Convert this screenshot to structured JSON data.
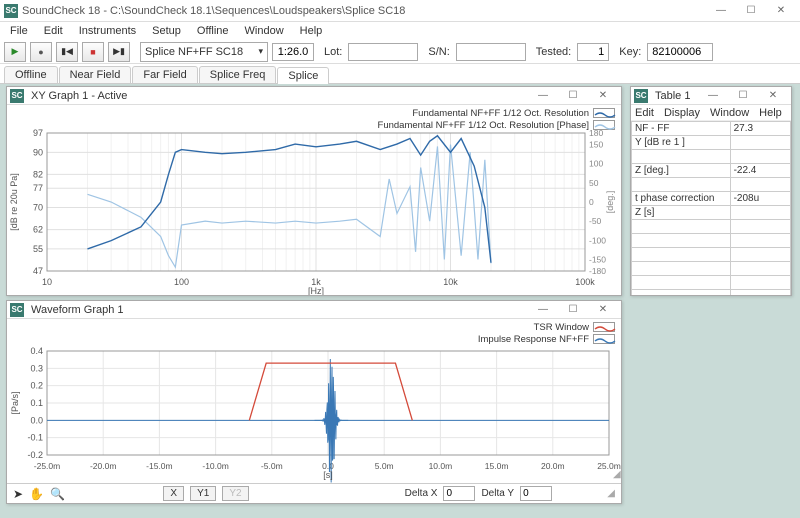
{
  "app": {
    "icon_text": "SC",
    "title": "SoundCheck 18  - C:\\SoundCheck 18.1\\Sequences\\Loudspeakers\\Splice SC18",
    "accent": "#3a7a6f"
  },
  "menu": [
    "File",
    "Edit",
    "Instruments",
    "Setup",
    "Offline",
    "Window",
    "Help"
  ],
  "toolbar": {
    "sequence": "Splice NF+FF SC18",
    "time": "1:26.0",
    "lot_label": "Lot:",
    "lot_value": "",
    "sn_label": "S/N:",
    "sn_value": "",
    "tested_label": "Tested:",
    "tested_value": "1",
    "key_label": "Key:",
    "key_value": "82100006"
  },
  "tabs": [
    "Offline",
    "Near Field",
    "Far Field",
    "Splice Freq",
    "Splice"
  ],
  "active_tab": 4,
  "xy_graph": {
    "title": "XY Graph 1 - Active",
    "legend": [
      {
        "label": "Fundamental NF+FF 1/12 Oct. Resolution",
        "color": "#2f6aa8",
        "style": "solid"
      },
      {
        "label": "Fundamental NF+FF 1/12 Oct. Resolution [Phase]",
        "color": "#9fc4e4",
        "style": "solid"
      }
    ],
    "x_label": "[Hz]",
    "y_left_label": "[dB re 20u Pa]",
    "y_right_label": "[deg.]",
    "x_log": true,
    "xlim": [
      10,
      100000
    ],
    "x_ticks": [
      10,
      100,
      1000,
      10000,
      100000
    ],
    "x_tick_labels": [
      "10",
      "100",
      "1k",
      "10k",
      "100k"
    ],
    "y_left": [
      47,
      97
    ],
    "y_left_ticks": [
      47,
      55,
      62,
      70,
      77,
      82,
      90,
      97
    ],
    "y_right": [
      -180,
      180
    ],
    "y_right_ticks": [
      -180,
      -150,
      -100,
      -50,
      0,
      50,
      100,
      150,
      180
    ],
    "grid_color": "#e0e0e0",
    "bg": "#ffffff",
    "mag": {
      "color": "#2f6aa8",
      "width": 1.4,
      "pts": [
        [
          20,
          55
        ],
        [
          30,
          58
        ],
        [
          50,
          63
        ],
        [
          70,
          72
        ],
        [
          80,
          82
        ],
        [
          90,
          90
        ],
        [
          100,
          91
        ],
        [
          150,
          90
        ],
        [
          200,
          89.5
        ],
        [
          300,
          90
        ],
        [
          500,
          91
        ],
        [
          700,
          93
        ],
        [
          1000,
          92
        ],
        [
          1500,
          93
        ],
        [
          2000,
          94
        ],
        [
          3000,
          91
        ],
        [
          4000,
          93
        ],
        [
          5000,
          95
        ],
        [
          6000,
          89
        ],
        [
          7000,
          94
        ],
        [
          8000,
          96
        ],
        [
          10000,
          90
        ],
        [
          12000,
          95
        ],
        [
          15000,
          85
        ],
        [
          18000,
          70
        ],
        [
          20000,
          50
        ]
      ]
    },
    "phase": {
      "color": "#9fc4e4",
      "width": 1.2,
      "pts": [
        [
          20,
          20
        ],
        [
          30,
          0
        ],
        [
          50,
          -40
        ],
        [
          70,
          -90
        ],
        [
          80,
          -140
        ],
        [
          90,
          -170
        ],
        [
          100,
          -60
        ],
        [
          150,
          -50
        ],
        [
          200,
          -55
        ],
        [
          300,
          -50
        ],
        [
          500,
          -55
        ],
        [
          700,
          -50
        ],
        [
          1000,
          -55
        ],
        [
          1500,
          -50
        ],
        [
          2000,
          -45
        ],
        [
          3000,
          -90
        ],
        [
          3500,
          60
        ],
        [
          4000,
          -30
        ],
        [
          5000,
          40
        ],
        [
          5500,
          -130
        ],
        [
          6000,
          90
        ],
        [
          7000,
          -50
        ],
        [
          8000,
          145
        ],
        [
          9000,
          -150
        ],
        [
          10000,
          150
        ],
        [
          12000,
          -140
        ],
        [
          14000,
          130
        ],
        [
          16000,
          -150
        ],
        [
          18000,
          110
        ],
        [
          20000,
          -160
        ]
      ]
    }
  },
  "wave_graph": {
    "title": "Waveform Graph 1",
    "legend": [
      {
        "label": "TSR Window",
        "color": "#d44a3a"
      },
      {
        "label": "Impulse Response NF+FF",
        "color": "#3a78b5"
      }
    ],
    "x_label": "[s]",
    "y_label": "[Pa/s]",
    "xlim": [
      -0.025,
      0.025
    ],
    "x_ticks": [
      -0.025,
      -0.02,
      -0.015,
      -0.01,
      -0.005,
      0.0,
      0.005,
      0.01,
      0.015,
      0.02,
      0.025
    ],
    "x_tick_labels": [
      "-25.0m",
      "-20.0m",
      "-15.0m",
      "-10.0m",
      "-5.0m",
      "0.0",
      "5.0m",
      "10.0m",
      "15.0m",
      "20.0m",
      "25.0m"
    ],
    "ylim": [
      -0.2,
      0.4
    ],
    "y_ticks": [
      -0.2,
      -0.1,
      0.0,
      0.1,
      0.2,
      0.3,
      0.4
    ],
    "grid_color": "#e6e6e6",
    "tsr": {
      "color": "#d44a3a",
      "width": 1.3,
      "pts": [
        [
          -0.007,
          0
        ],
        [
          -0.0055,
          0.33
        ],
        [
          0.006,
          0.33
        ],
        [
          0.0075,
          0
        ]
      ]
    },
    "impulse": {
      "color": "#3a78b5",
      "width": 1,
      "baseline": 0.0,
      "burst_center": 0.0003,
      "burst_width": 0.003
    },
    "statusbar": {
      "btns": [
        "X",
        "Y1",
        "Y2"
      ],
      "dx_label": "Delta X",
      "dx_val": "0",
      "dy_label": "Delta Y",
      "dy_val": "0"
    }
  },
  "table_win": {
    "title": "Table 1",
    "menu": [
      "Edit",
      "Display",
      "Window",
      "Help"
    ],
    "rows": [
      [
        "NF - FF",
        "27.3"
      ],
      [
        "Y [dB re 1 ]",
        ""
      ],
      [
        "",
        ""
      ],
      [
        "Z [deg.]",
        "-22.4"
      ],
      [
        "",
        ""
      ],
      [
        "t phase correction",
        "-208u"
      ],
      [
        "Z [s]",
        ""
      ],
      [
        "",
        ""
      ],
      [
        "",
        ""
      ],
      [
        "",
        ""
      ],
      [
        "",
        ""
      ],
      [
        "",
        ""
      ],
      [
        "",
        ""
      ]
    ]
  }
}
